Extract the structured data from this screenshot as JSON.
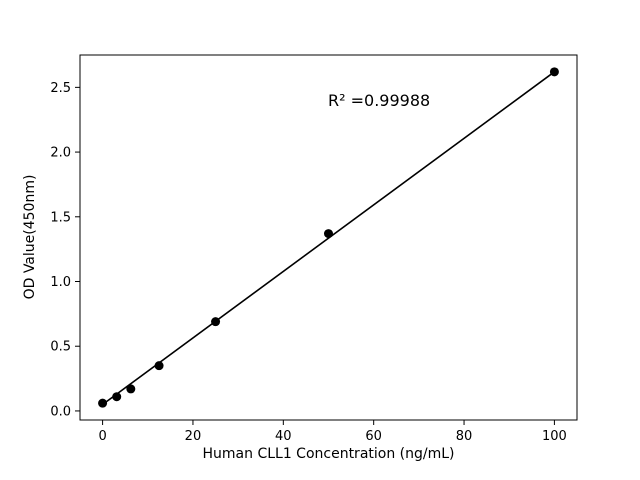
{
  "chart": {
    "annotation": "R² =0.99988",
    "xlabel": "Human CLL1 Concentration (ng/mL)",
    "ylabel": "OD Value(450nm)"
  },
  "chart_data": {
    "type": "scatter",
    "title": "",
    "xlabel": "Human CLL1 Concentration (ng/mL)",
    "ylabel": "OD Value(450nm)",
    "annotation": "R² =0.99988",
    "x": [
      0,
      3.125,
      6.25,
      12.5,
      25,
      50,
      100
    ],
    "y": [
      0.06,
      0.11,
      0.17,
      0.35,
      0.69,
      1.37,
      2.62
    ],
    "fit_line": {
      "x": [
        0,
        100
      ],
      "y": [
        0.05,
        2.62
      ]
    },
    "xlim": [
      -5,
      105
    ],
    "ylim": [
      -0.07,
      2.75
    ],
    "xticks": [
      0,
      20,
      40,
      60,
      80,
      100
    ],
    "xtick_labels": [
      "0",
      "20",
      "40",
      "60",
      "80",
      "100"
    ],
    "yticks": [
      0.0,
      0.5,
      1.0,
      1.5,
      2.0,
      2.5
    ],
    "ytick_labels": [
      "0.0",
      "0.5",
      "1.0",
      "1.5",
      "2.0",
      "2.5"
    ],
    "grid": false,
    "legend": null,
    "marker_color": "#000000",
    "line_color": "#000000",
    "background_color": "#ffffff"
  }
}
